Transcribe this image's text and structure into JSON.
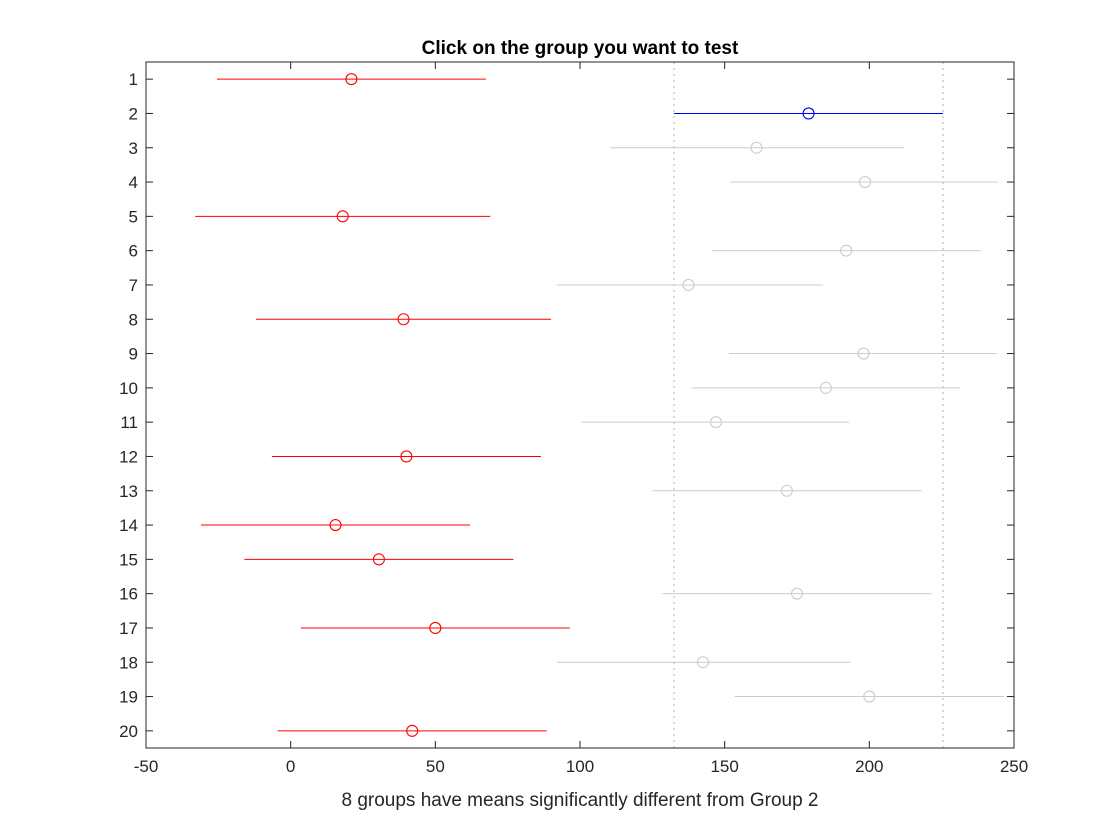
{
  "chart_data": {
    "type": "scatter",
    "title": "Click on the group you want to test",
    "xlabel": "8 groups have means significantly different from Group 2",
    "ylabel": "",
    "xlim": [
      -50,
      250
    ],
    "ylim": [
      0.5,
      20.5
    ],
    "x_reversed": false,
    "y_reversed": true,
    "xticks": [
      -50,
      0,
      50,
      100,
      150,
      200,
      250
    ],
    "yticks": [
      1,
      2,
      3,
      4,
      5,
      6,
      7,
      8,
      9,
      10,
      11,
      12,
      13,
      14,
      15,
      16,
      17,
      18,
      19,
      20
    ],
    "grid": false,
    "legend": "none",
    "selected_group": 2,
    "reference_interval": [
      132.5,
      225.5
    ],
    "colors": {
      "selected": "#0000ff",
      "significant": "#ff0000",
      "not_significant": "#cccccc",
      "reference_line": "#cccccc",
      "axes": "#262626"
    },
    "groups": [
      {
        "label": "1",
        "mean": 21.0,
        "lower": -25.5,
        "upper": 67.5,
        "status": "significant"
      },
      {
        "label": "2",
        "mean": 179.0,
        "lower": 132.5,
        "upper": 225.5,
        "status": "selected"
      },
      {
        "label": "3",
        "mean": 161.0,
        "lower": 110.5,
        "upper": 212.0,
        "status": "not_significant"
      },
      {
        "label": "4",
        "mean": 198.5,
        "lower": 152.0,
        "upper": 244.5,
        "status": "not_significant"
      },
      {
        "label": "5",
        "mean": 18.0,
        "lower": -33.0,
        "upper": 69.0,
        "status": "significant"
      },
      {
        "label": "6",
        "mean": 192.0,
        "lower": 145.5,
        "upper": 238.5,
        "status": "not_significant"
      },
      {
        "label": "7",
        "mean": 137.5,
        "lower": 92.0,
        "upper": 184.0,
        "status": "not_significant"
      },
      {
        "label": "8",
        "mean": 39.0,
        "lower": -12.0,
        "upper": 90.0,
        "status": "significant"
      },
      {
        "label": "9",
        "mean": 198.0,
        "lower": 151.5,
        "upper": 244.0,
        "status": "not_significant"
      },
      {
        "label": "10",
        "mean": 185.0,
        "lower": 138.5,
        "upper": 231.5,
        "status": "not_significant"
      },
      {
        "label": "11",
        "mean": 147.0,
        "lower": 100.5,
        "upper": 193.0,
        "status": "not_significant"
      },
      {
        "label": "12",
        "mean": 40.0,
        "lower": -6.5,
        "upper": 86.5,
        "status": "significant"
      },
      {
        "label": "13",
        "mean": 171.5,
        "lower": 125.0,
        "upper": 218.0,
        "status": "not_significant"
      },
      {
        "label": "14",
        "mean": 15.5,
        "lower": -31.0,
        "upper": 62.0,
        "status": "significant"
      },
      {
        "label": "15",
        "mean": 30.5,
        "lower": -16.0,
        "upper": 77.0,
        "status": "significant"
      },
      {
        "label": "16",
        "mean": 175.0,
        "lower": 128.5,
        "upper": 221.5,
        "status": "not_significant"
      },
      {
        "label": "17",
        "mean": 50.0,
        "lower": 3.5,
        "upper": 96.5,
        "status": "significant"
      },
      {
        "label": "18",
        "mean": 142.5,
        "lower": 92.0,
        "upper": 193.5,
        "status": "not_significant"
      },
      {
        "label": "19",
        "mean": 200.0,
        "lower": 153.5,
        "upper": 246.5,
        "status": "not_significant"
      },
      {
        "label": "20",
        "mean": 42.0,
        "lower": -4.5,
        "upper": 88.5,
        "status": "significant"
      }
    ]
  }
}
